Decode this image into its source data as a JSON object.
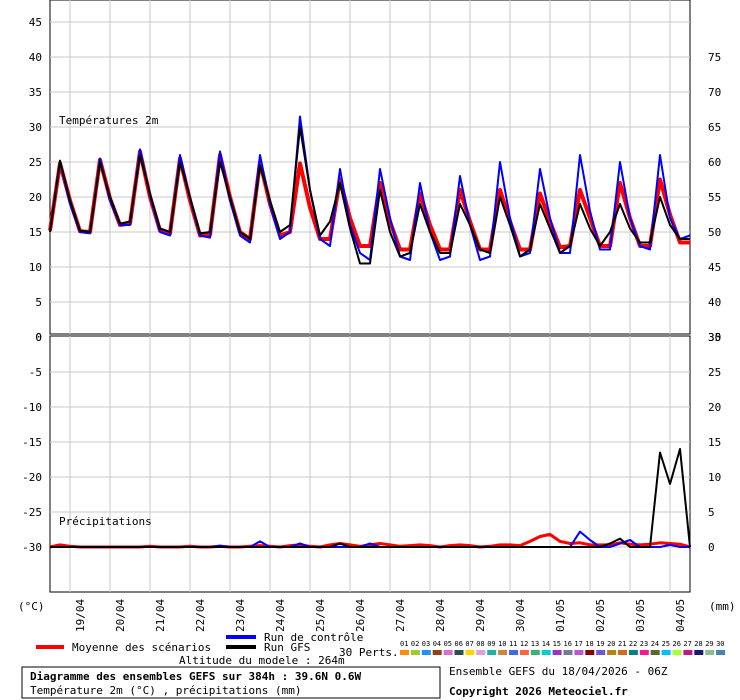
{
  "chart_data": [
    {
      "type": "line",
      "title": "Températures 2m",
      "ylabel": "(°C)",
      "ylim": [
        0,
        47
      ],
      "yticks_left": [
        0,
        5,
        10,
        15,
        20,
        25,
        30,
        35,
        40,
        45
      ],
      "yticks_right": [
        35,
        40,
        45,
        50,
        55,
        60,
        65,
        70,
        75
      ],
      "x": [
        "18/04 06h",
        "18/04 12h",
        "18/04 18h",
        "19/04 00h",
        "19/04 06h",
        "19/04 12h",
        "19/04 18h",
        "20/04 00h",
        "20/04 06h",
        "20/04 12h",
        "20/04 18h",
        "21/04 00h",
        "21/04 06h",
        "21/04 12h",
        "21/04 18h",
        "22/04 00h",
        "22/04 06h",
        "22/04 12h",
        "22/04 18h",
        "23/04 00h",
        "23/04 06h",
        "23/04 12h",
        "23/04 18h",
        "24/04 00h",
        "24/04 06h",
        "24/04 12h",
        "24/04 18h",
        "25/04 00h",
        "25/04 06h",
        "25/04 12h",
        "25/04 18h",
        "26/04 00h",
        "26/04 06h",
        "26/04 12h",
        "26/04 18h",
        "27/04 00h",
        "27/04 06h",
        "27/04 12h",
        "27/04 18h",
        "28/04 00h",
        "28/04 06h",
        "28/04 12h",
        "28/04 18h",
        "29/04 00h",
        "29/04 06h",
        "29/04 12h",
        "29/04 18h",
        "30/04 00h",
        "30/04 06h",
        "30/04 12h",
        "30/04 18h",
        "01/05 00h",
        "01/05 06h",
        "01/05 12h",
        "01/05 18h",
        "02/05 00h",
        "02/05 06h",
        "02/05 12h",
        "02/05 18h",
        "03/05 00h",
        "03/05 06h",
        "03/05 12h",
        "03/05 18h",
        "04/05 00h",
        "04/05 06h"
      ],
      "series": [
        {
          "name": "Moyenne des scénarios",
          "color": "#ff0000",
          "values": [
            15.2,
            24.8,
            19.5,
            15.1,
            15.0,
            25.3,
            19.8,
            16.0,
            16.2,
            26.5,
            20.0,
            15.2,
            14.8,
            25.5,
            19.5,
            14.5,
            14.6,
            26.0,
            20.0,
            15.0,
            14.0,
            25.0,
            19.0,
            14.5,
            15.0,
            24.8,
            18.5,
            14.0,
            14.0,
            22.5,
            17.0,
            13.0,
            13.0,
            22.0,
            16.5,
            12.5,
            12.5,
            20.5,
            16.0,
            12.5,
            12.5,
            21.0,
            16.5,
            12.5,
            12.5,
            21.0,
            16.5,
            12.5,
            12.5,
            20.5,
            16.5,
            12.8,
            13.0,
            21.0,
            17.0,
            13.0,
            13.0,
            22.0,
            17.0,
            13.0,
            13.0,
            22.5,
            17.5,
            13.5,
            13.5
          ]
        },
        {
          "name": "Run de contrôle",
          "color": "#0000ff",
          "values": [
            15.0,
            25.0,
            19.0,
            15.0,
            14.8,
            25.5,
            19.5,
            16.0,
            16.0,
            26.8,
            20.2,
            15.0,
            14.5,
            26.0,
            19.8,
            14.5,
            14.2,
            26.5,
            19.5,
            14.5,
            13.5,
            26.0,
            19.0,
            14.0,
            15.0,
            31.5,
            21.0,
            14.0,
            13.0,
            24.0,
            16.0,
            12.0,
            11.0,
            24.0,
            17.0,
            11.5,
            11.0,
            22.0,
            15.0,
            11.0,
            11.5,
            23.0,
            16.0,
            11.0,
            11.5,
            25.0,
            17.0,
            11.5,
            12.0,
            24.0,
            17.0,
            12.0,
            12.0,
            26.0,
            18.0,
            12.5,
            12.5,
            25.0,
            17.0,
            13.0,
            12.5,
            26.0,
            17.0,
            14.0,
            14.5
          ]
        },
        {
          "name": "Run GFS",
          "color": "#000000",
          "values": [
            15.0,
            25.2,
            19.5,
            15.2,
            15.0,
            25.0,
            20.0,
            16.2,
            16.5,
            26.0,
            20.5,
            15.5,
            15.0,
            25.0,
            20.0,
            14.8,
            15.0,
            25.0,
            20.0,
            15.0,
            14.0,
            24.5,
            19.5,
            15.0,
            16.0,
            30.0,
            21.0,
            14.5,
            16.5,
            22.0,
            15.5,
            10.5,
            10.5,
            21.0,
            15.0,
            11.5,
            12.0,
            19.0,
            15.0,
            12.0,
            12.0,
            19.0,
            16.0,
            12.5,
            12.0,
            20.0,
            16.0,
            11.5,
            12.5,
            19.0,
            15.5,
            12.0,
            13.0,
            19.0,
            15.5,
            13.0,
            15.0,
            19.0,
            15.5,
            13.5,
            13.5,
            20.0,
            16.0,
            14.0,
            14.0
          ]
        }
      ]
    },
    {
      "type": "line",
      "title": "Précipitations",
      "ylabel": "(mm)",
      "ylim": [
        0,
        30
      ],
      "yticks_left": [
        -30,
        -25,
        -20,
        -15,
        -10,
        -5,
        0
      ],
      "yticks_right": [
        0,
        5,
        10,
        15,
        20,
        25,
        30
      ],
      "x": [
        "18/04 06h",
        "18/04 12h",
        "18/04 18h",
        "19/04 00h",
        "19/04 06h",
        "19/04 12h",
        "19/04 18h",
        "20/04 00h",
        "20/04 06h",
        "20/04 12h",
        "20/04 18h",
        "21/04 00h",
        "21/04 06h",
        "21/04 12h",
        "21/04 18h",
        "22/04 00h",
        "22/04 06h",
        "22/04 12h",
        "22/04 18h",
        "23/04 00h",
        "23/04 06h",
        "23/04 12h",
        "23/04 18h",
        "24/04 00h",
        "24/04 06h",
        "24/04 12h",
        "24/04 18h",
        "25/04 00h",
        "25/04 06h",
        "25/04 12h",
        "25/04 18h",
        "26/04 00h",
        "26/04 06h",
        "26/04 12h",
        "26/04 18h",
        "27/04 00h",
        "27/04 06h",
        "27/04 12h",
        "27/04 18h",
        "28/04 00h",
        "28/04 06h",
        "28/04 12h",
        "28/04 18h",
        "29/04 00h",
        "29/04 06h",
        "29/04 12h",
        "29/04 18h",
        "30/04 00h",
        "30/04 06h",
        "30/04 12h",
        "30/04 18h",
        "01/05 00h",
        "01/05 06h",
        "01/05 12h",
        "01/05 18h",
        "02/05 00h",
        "02/05 06h",
        "02/05 12h",
        "02/05 18h",
        "03/05 00h",
        "03/05 06h",
        "03/05 12h",
        "03/05 18h",
        "04/05 00h",
        "04/05 06h"
      ],
      "series": [
        {
          "name": "Moyenne des scénarios",
          "color": "#ff0000",
          "values": [
            0,
            0.3,
            0.1,
            0,
            0,
            0,
            0,
            0,
            0,
            0,
            0.1,
            0,
            0,
            0,
            0.1,
            0,
            0,
            0.1,
            0,
            0,
            0.1,
            0.2,
            0.1,
            0,
            0.2,
            0.3,
            0.1,
            0,
            0.3,
            0.5,
            0.3,
            0.1,
            0.3,
            0.5,
            0.3,
            0.1,
            0.2,
            0.3,
            0.2,
            0,
            0.2,
            0.3,
            0.2,
            0,
            0.1,
            0.3,
            0.3,
            0.2,
            0.8,
            1.5,
            1.8,
            0.8,
            0.5,
            0.6,
            0.3,
            0.3,
            0.3,
            0.6,
            0.4,
            0.3,
            0.4,
            0.6,
            0.5,
            0.4,
            0
          ]
        },
        {
          "name": "Run de contrôle",
          "color": "#0000ff",
          "values": [
            0,
            0,
            0,
            0,
            0,
            0,
            0,
            0,
            0,
            0,
            0,
            0,
            0,
            0,
            0,
            0,
            0,
            0.2,
            0,
            0,
            0,
            0.8,
            0,
            0,
            0,
            0.5,
            0,
            0,
            0,
            0,
            0,
            0,
            0.5,
            0,
            0,
            0,
            0,
            0,
            0,
            0,
            0,
            0,
            0,
            0,
            0,
            0,
            0,
            0,
            0,
            0,
            0,
            0,
            0,
            2.2,
            1.0,
            0,
            0,
            0.5,
            1.0,
            0,
            0,
            0,
            0.3,
            0,
            0
          ]
        },
        {
          "name": "Run GFS",
          "color": "#000000",
          "values": [
            0,
            0,
            0,
            0,
            0,
            0,
            0,
            0,
            0,
            0,
            0,
            0,
            0,
            0,
            0,
            0,
            0,
            0,
            0,
            0,
            0,
            0,
            0,
            0,
            0,
            0,
            0,
            0,
            0,
            0.5,
            0,
            0,
            0,
            0,
            0,
            0,
            0,
            0,
            0,
            0,
            0,
            0,
            0,
            0,
            0,
            0,
            0,
            0,
            0,
            0,
            0,
            0,
            0,
            0,
            0,
            0,
            0.5,
            1.2,
            0,
            0,
            0,
            13.5,
            9.0,
            14.0,
            0
          ]
        }
      ]
    }
  ],
  "perturbations": {
    "count_label": "30 Perts.",
    "labels": [
      "01",
      "02",
      "03",
      "04",
      "05",
      "06",
      "07",
      "08",
      "09",
      "10",
      "11",
      "12",
      "13",
      "14",
      "15",
      "16",
      "17",
      "18",
      "19",
      "20",
      "21",
      "22",
      "23",
      "24",
      "25",
      "26",
      "27",
      "28",
      "29",
      "30"
    ],
    "colors": [
      "#ff8c00",
      "#9acd32",
      "#1e90ff",
      "#8b4513",
      "#da70d6",
      "#2f4f4f",
      "#ffd700",
      "#dda0dd",
      "#20b2aa",
      "#cd853f",
      "#4169e1",
      "#ff6347",
      "#3cb371",
      "#00ced1",
      "#9932cc",
      "#708090",
      "#ba55d3",
      "#8b0000",
      "#6a5acd",
      "#b8860b",
      "#d2691e",
      "#008080",
      "#ff1493",
      "#556b2f",
      "#00bfff",
      "#adff2f",
      "#c71585",
      "#191970",
      "#8fbc8f",
      "#4682b4"
    ]
  },
  "x_axis_labels": [
    "19/04",
    "20/04",
    "21/04",
    "22/04",
    "23/04",
    "24/04",
    "25/04",
    "26/04",
    "27/04",
    "28/04",
    "29/04",
    "30/04",
    "01/05",
    "02/05",
    "03/05",
    "04/05"
  ],
  "units": {
    "left": "(°C)",
    "right": "(mm)"
  },
  "legend": {
    "mean_label": "Moyenne des scénarios",
    "control_label": "Run de contrôle",
    "gfs_label": "Run GFS",
    "mean_color": "#ff0000",
    "control_color": "#0000ff",
    "gfs_color": "#000000"
  },
  "altitude": "Altitude du modele : 264m",
  "ensemble_info": "Ensemble GEFS du 18/04/2026 - 06Z",
  "info_box": {
    "line1": "Diagramme des ensembles GEFS sur 384h : 39.6N 0.6W",
    "line2": "Température 2m (°C) , précipitations (mm)"
  },
  "copyright": "Copyright 2026 Meteociel.fr"
}
